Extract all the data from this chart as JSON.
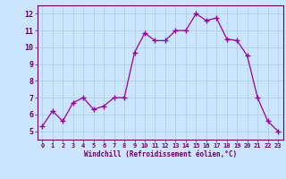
{
  "x": [
    0,
    1,
    2,
    3,
    4,
    5,
    6,
    7,
    8,
    9,
    10,
    11,
    12,
    13,
    14,
    15,
    16,
    17,
    18,
    19,
    20,
    21,
    22,
    23
  ],
  "y": [
    5.3,
    6.2,
    5.6,
    6.7,
    7.0,
    6.3,
    6.5,
    7.0,
    7.0,
    9.7,
    10.85,
    10.4,
    10.4,
    11.0,
    11.0,
    12.0,
    11.6,
    11.75,
    10.5,
    10.4,
    9.5,
    7.0,
    5.6,
    5.0
  ],
  "line_color": "#990099",
  "marker": "+",
  "marker_size": 4,
  "bg_color": "#cce5ff",
  "grid_color": "#aaccdd",
  "xlabel": "Windchill (Refroidissement éolien,°C)",
  "xlabel_color": "#660066",
  "tick_color": "#660066",
  "ylim": [
    4.5,
    12.5
  ],
  "xlim": [
    -0.5,
    23.5
  ],
  "yticks": [
    5,
    6,
    7,
    8,
    9,
    10,
    11,
    12
  ],
  "xticks": [
    0,
    1,
    2,
    3,
    4,
    5,
    6,
    7,
    8,
    9,
    10,
    11,
    12,
    13,
    14,
    15,
    16,
    17,
    18,
    19,
    20,
    21,
    22,
    23
  ]
}
